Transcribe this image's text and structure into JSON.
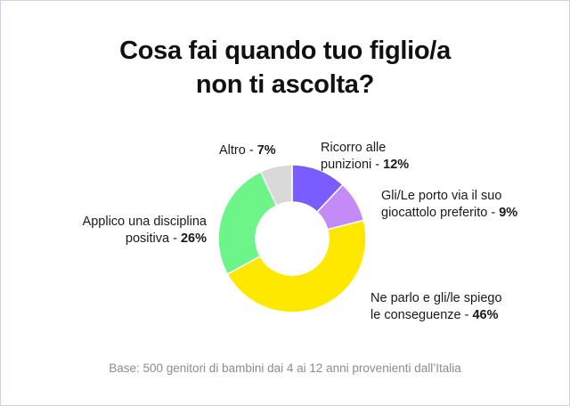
{
  "chart_data": {
    "type": "pie",
    "title": [
      "Cosa fai quando tuo figlio/a",
      "non ti ascolta?"
    ],
    "categories": [
      "Ricorro alle punizioni",
      "Gli/Le porto via il suo giocattolo preferito",
      "Ne parlo e gli/le spiego le conseguenze",
      "Applico una disciplina positiva",
      "Altro"
    ],
    "values": [
      12,
      9,
      46,
      26,
      7
    ],
    "value_labels": [
      "12%",
      "9%",
      "46%",
      "26%",
      "7%"
    ],
    "colors": [
      "#7b5cff",
      "#c48af5",
      "#ffe800",
      "#6ef58a",
      "#d9d9d9"
    ],
    "label_lines": [
      [
        "Ricorro alle",
        "punizioni - "
      ],
      [
        "Gli/Le porto via il suo",
        "giocattolo preferito - "
      ],
      [
        "Ne parlo e gli/le spiego",
        "le conseguenze - "
      ],
      [
        "Applico una disciplina",
        "positiva - "
      ],
      [
        "Altro - "
      ]
    ],
    "donut": true,
    "legend": "none"
  },
  "footer": "Base: 500 genitori di bambini dai 4 ai 12 anni provenienti dall’Italia"
}
